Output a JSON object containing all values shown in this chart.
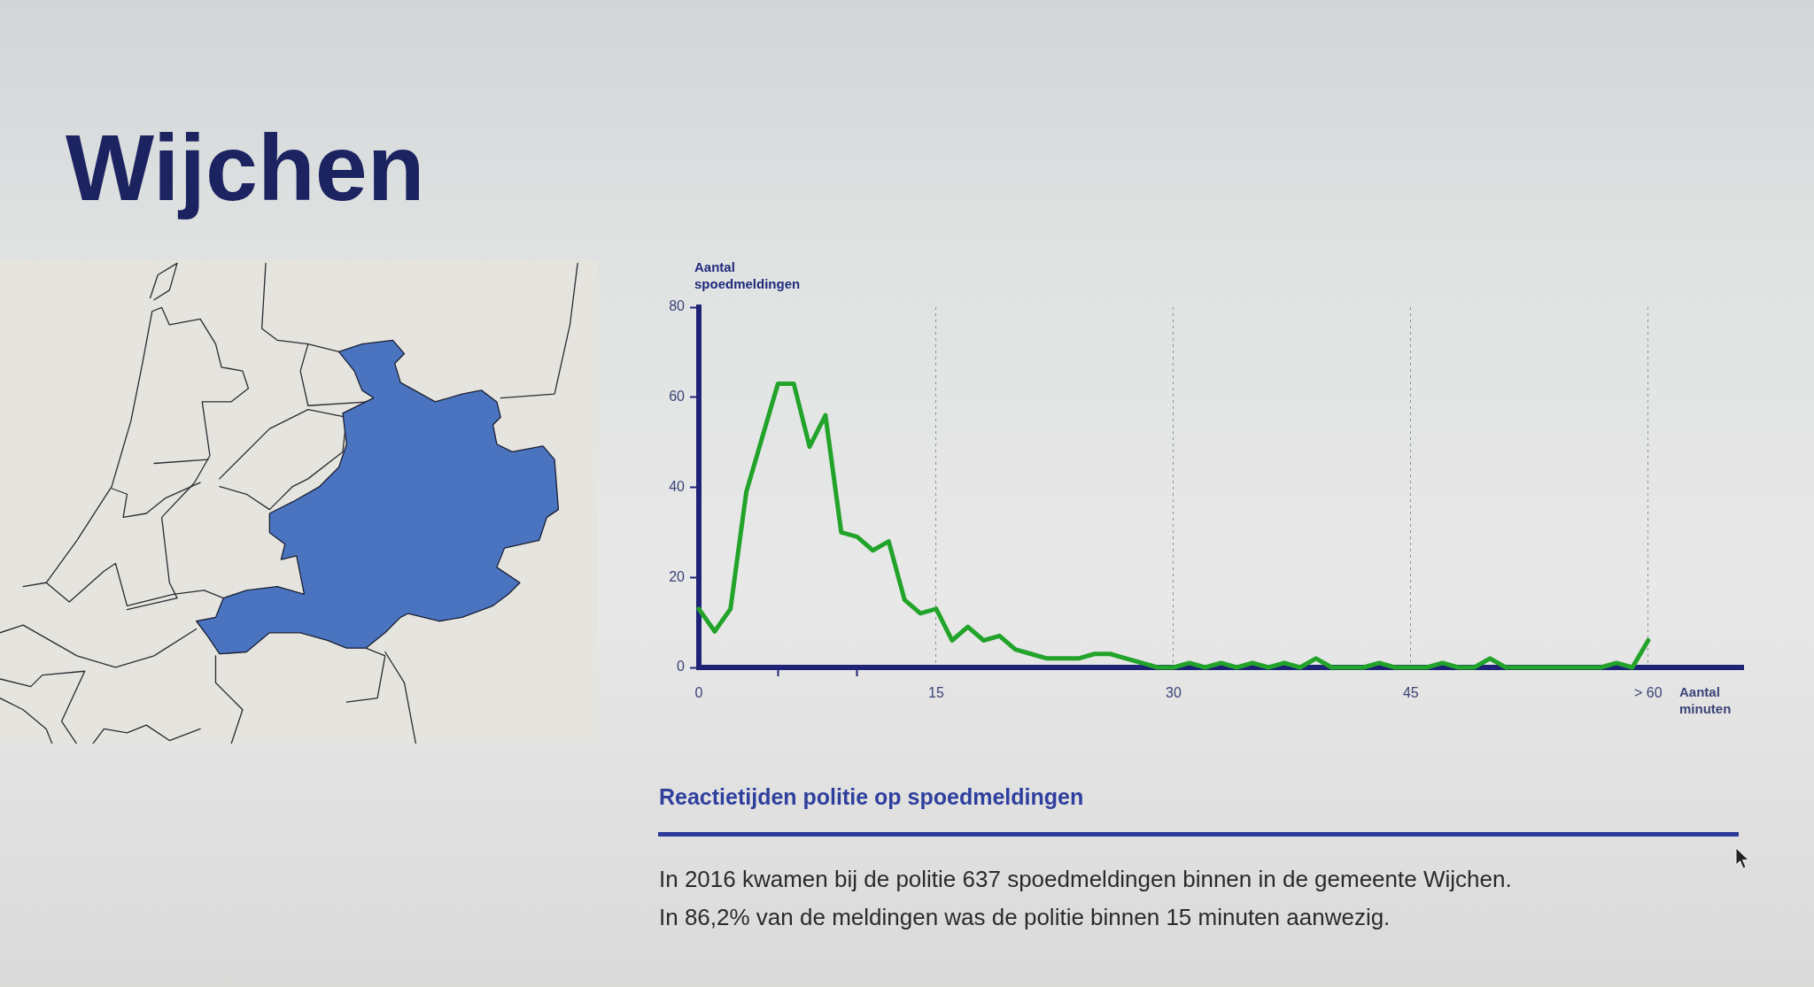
{
  "chart_data": {
    "type": "line",
    "title": "Wijchen",
    "subtitle": "Reactietijden politie op spoedmeldingen",
    "xlabel": "Aantal minuten",
    "ylabel": "Aantal spoedmeldingen",
    "x": [
      0,
      1,
      2,
      3,
      4,
      5,
      6,
      7,
      8,
      9,
      10,
      11,
      12,
      13,
      14,
      15,
      16,
      17,
      18,
      19,
      20,
      21,
      22,
      23,
      24,
      25,
      26,
      27,
      28,
      29,
      30,
      31,
      32,
      33,
      34,
      35,
      36,
      37,
      38,
      39,
      40,
      41,
      42,
      43,
      44,
      45,
      46,
      47,
      48,
      49,
      50,
      51,
      52,
      53,
      54,
      55,
      56,
      57,
      58,
      59,
      60
    ],
    "values": [
      13,
      8,
      13,
      39,
      51,
      63,
      63,
      49,
      56,
      30,
      29,
      26,
      28,
      15,
      12,
      13,
      6,
      9,
      6,
      7,
      4,
      3,
      2,
      2,
      2,
      3,
      3,
      2,
      1,
      0,
      0,
      1,
      0,
      1,
      0,
      1,
      0,
      1,
      0,
      2,
      0,
      0,
      0,
      1,
      0,
      0,
      0,
      1,
      0,
      0,
      2,
      0,
      0,
      0,
      0,
      0,
      0,
      0,
      1,
      0,
      6
    ],
    "color": "#22a32a",
    "marker": "none",
    "grid": "x",
    "xlim": [
      0,
      66
    ],
    "xticks": [
      0,
      {
        "value": 5,
        "label": null
      },
      {
        "value": 10,
        "label": null
      },
      15,
      30,
      45,
      {
        "value": 60,
        "label": "> 60"
      }
    ],
    "ylim": [
      0,
      80
    ],
    "yticks": [
      0,
      20,
      40,
      60,
      80
    ],
    "annotations": [
      "In 2016 kwamen bij de politie 637 spoedmeldingen binnen in de gemeente Wijchen.",
      "In 86,2% van de meldingen was de politie binnen 15 minuten aanwezig."
    ]
  }
}
